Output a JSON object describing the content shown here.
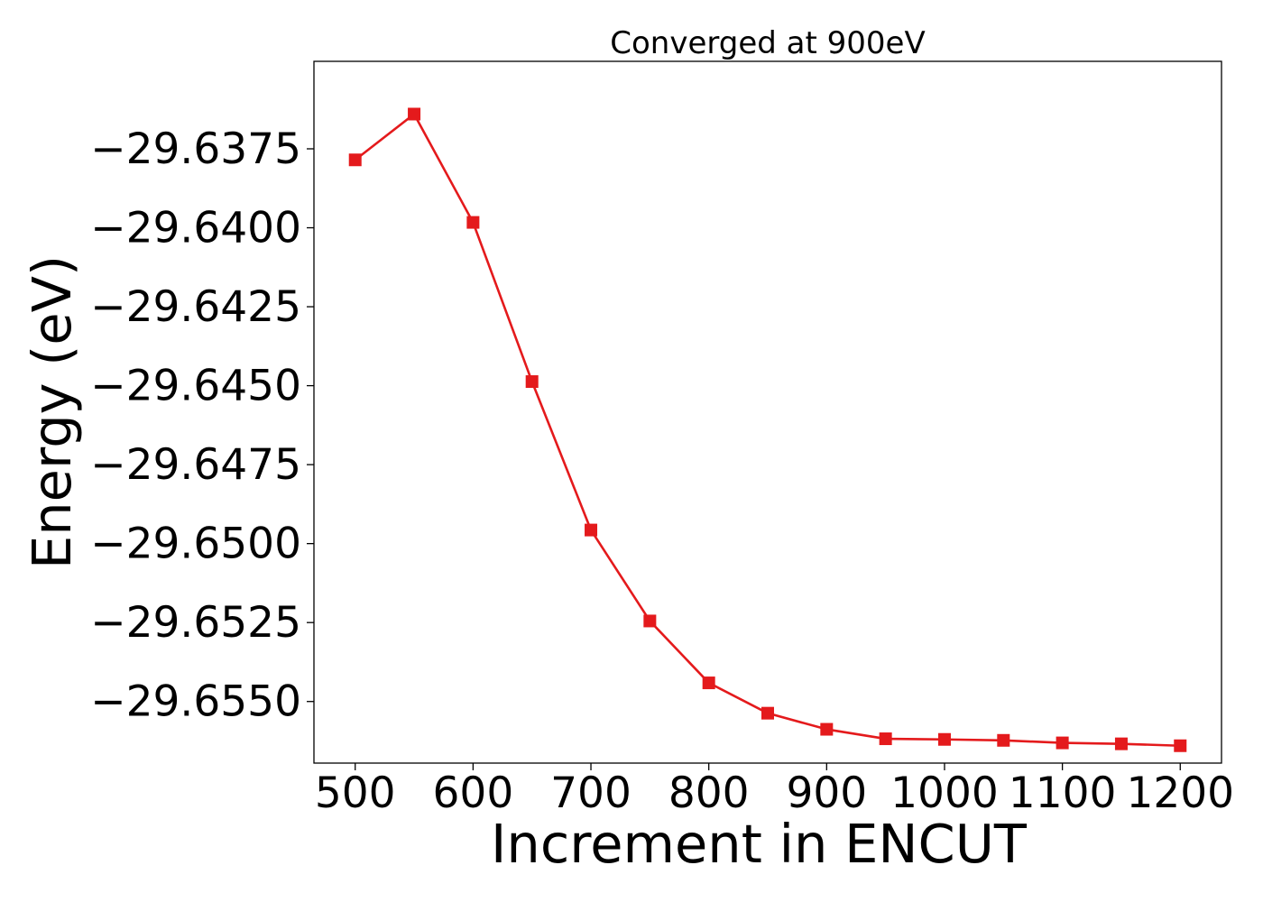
{
  "chart_data": {
    "type": "line",
    "title": "Converged at 900eV",
    "xlabel": "Increment in ENCUT",
    "ylabel": "Energy (eV)",
    "xlim": [
      465,
      1235
    ],
    "ylim": [
      -29.65695,
      -29.63473
    ],
    "xticks": [
      500,
      600,
      700,
      800,
      900,
      1000,
      1100,
      1200
    ],
    "yticks": [
      -29.6375,
      -29.64,
      -29.6425,
      -29.645,
      -29.6475,
      -29.65,
      -29.6525,
      -29.655
    ],
    "ytick_labels": [
      "−29.6375",
      "−29.6400",
      "−29.6425",
      "−29.6450",
      "−29.6475",
      "−29.6500",
      "−29.6525",
      "−29.6550"
    ],
    "grid": false,
    "series": [
      {
        "name": "Energy",
        "color": "#e41a1c",
        "marker": "square",
        "x": [
          500,
          550,
          600,
          650,
          700,
          750,
          800,
          850,
          900,
          950,
          1000,
          1050,
          1100,
          1150,
          1200
        ],
        "y": [
          -29.63785,
          -29.6364,
          -29.63983,
          -29.64487,
          -29.64957,
          -29.65245,
          -29.65441,
          -29.65537,
          -29.65588,
          -29.65618,
          -29.6562,
          -29.65623,
          -29.65631,
          -29.65634,
          -29.6564
        ]
      }
    ]
  }
}
